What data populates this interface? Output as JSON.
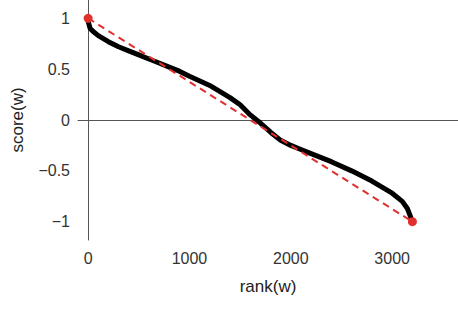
{
  "chart_data": {
    "type": "line",
    "x_label": "rank(w)",
    "y_label": "score(w)",
    "series": [
      {
        "type": "line",
        "color": "#000000",
        "marker": "none",
        "line_style": "solid",
        "x": [
          0,
          20,
          50,
          100,
          200,
          300,
          400,
          500,
          600,
          700,
          800,
          900,
          1000,
          1200,
          1400,
          1500,
          1600,
          1700,
          1800,
          1900,
          2000,
          2100,
          2200,
          2400,
          2600,
          2800,
          3000,
          3100,
          3150,
          3200
        ],
        "values": [
          0.97,
          0.9,
          0.87,
          0.83,
          0.77,
          0.72,
          0.68,
          0.64,
          0.6,
          0.56,
          0.52,
          0.48,
          0.43,
          0.34,
          0.22,
          0.15,
          0.05,
          -0.03,
          -0.12,
          -0.2,
          -0.25,
          -0.29,
          -0.33,
          -0.41,
          -0.5,
          -0.6,
          -0.72,
          -0.8,
          -0.87,
          -1.0
        ]
      },
      {
        "type": "line",
        "color": "#e0312f",
        "marker": "circle",
        "line_style": "dashed",
        "x": [
          0,
          3200
        ],
        "values": [
          1,
          -1
        ]
      }
    ],
    "xlim": [
      -100,
      3650
    ],
    "ylim": [
      -1.18,
      1.18
    ],
    "xticks": [
      0,
      1000,
      2000,
      3000
    ],
    "yticks": [
      {
        "value": -1,
        "label": "−1"
      },
      {
        "value": -0.5,
        "label": "−0.5"
      },
      0,
      0.5,
      1
    ],
    "grid": false
  }
}
